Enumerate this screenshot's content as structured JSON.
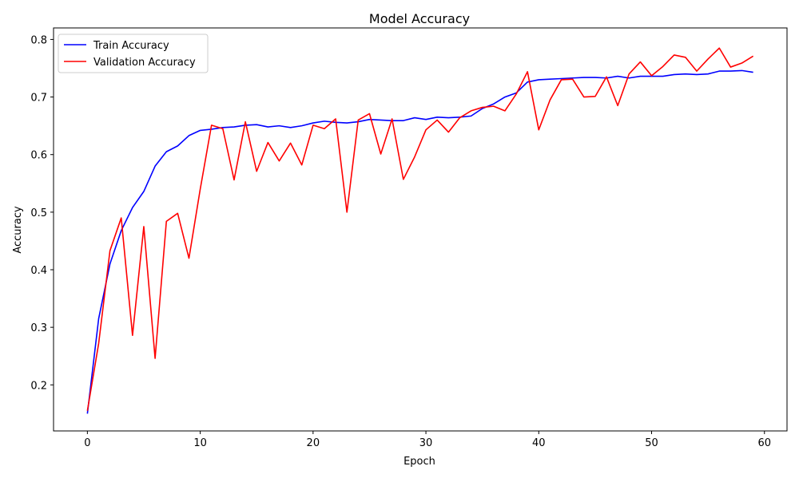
{
  "chart_data": {
    "type": "line",
    "title": "Model Accuracy",
    "xlabel": "Epoch",
    "ylabel": "Accuracy",
    "xlim": [
      -3,
      62
    ],
    "ylim": [
      0.12,
      0.82
    ],
    "xticks": [
      0,
      10,
      20,
      30,
      40,
      50,
      60
    ],
    "yticks": [
      0.2,
      0.3,
      0.4,
      0.5,
      0.6,
      0.7,
      0.8
    ],
    "grid": false,
    "legend_position": "top-left",
    "x": [
      0,
      1,
      2,
      3,
      4,
      5,
      6,
      7,
      8,
      9,
      10,
      11,
      12,
      13,
      14,
      15,
      16,
      17,
      18,
      19,
      20,
      21,
      22,
      23,
      24,
      25,
      26,
      27,
      28,
      29,
      30,
      31,
      32,
      33,
      34,
      35,
      36,
      37,
      38,
      39,
      40,
      41,
      42,
      43,
      44,
      45,
      46,
      47,
      48,
      49,
      50,
      51,
      52,
      53,
      54,
      55,
      56,
      57,
      58,
      59
    ],
    "series": [
      {
        "name": "Train Accuracy",
        "color": "#0000ff",
        "values": [
          0.15,
          0.315,
          0.41,
          0.468,
          0.508,
          0.536,
          0.58,
          0.605,
          0.615,
          0.633,
          0.642,
          0.644,
          0.647,
          0.648,
          0.651,
          0.652,
          0.648,
          0.65,
          0.647,
          0.65,
          0.655,
          0.658,
          0.656,
          0.655,
          0.657,
          0.661,
          0.66,
          0.659,
          0.659,
          0.664,
          0.661,
          0.665,
          0.664,
          0.665,
          0.667,
          0.68,
          0.688,
          0.7,
          0.707,
          0.726,
          0.73,
          0.731,
          0.732,
          0.733,
          0.734,
          0.734,
          0.733,
          0.736,
          0.733,
          0.736,
          0.736,
          0.736,
          0.739,
          0.74,
          0.739,
          0.74,
          0.745,
          0.745,
          0.746,
          0.743
        ]
      },
      {
        "name": "Validation Accuracy",
        "color": "#ff0000",
        "values": [
          0.155,
          0.272,
          0.433,
          0.49,
          0.286,
          0.475,
          0.246,
          0.484,
          0.498,
          0.42,
          0.54,
          0.651,
          0.645,
          0.556,
          0.657,
          0.571,
          0.621,
          0.589,
          0.62,
          0.582,
          0.651,
          0.645,
          0.662,
          0.5,
          0.66,
          0.671,
          0.601,
          0.662,
          0.557,
          0.596,
          0.643,
          0.66,
          0.639,
          0.664,
          0.676,
          0.682,
          0.684,
          0.676,
          0.705,
          0.744,
          0.643,
          0.695,
          0.73,
          0.731,
          0.7,
          0.701,
          0.735,
          0.685,
          0.74,
          0.761,
          0.737,
          0.753,
          0.773,
          0.769,
          0.745,
          0.766,
          0.785,
          0.752,
          0.759,
          0.771
        ]
      }
    ]
  }
}
